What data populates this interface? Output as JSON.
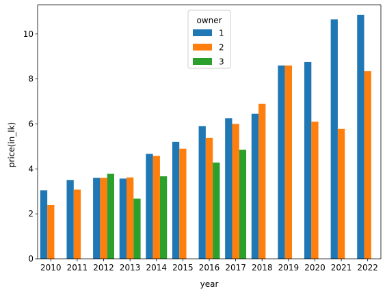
{
  "chart_data": {
    "type": "bar",
    "xlabel": "year",
    "ylabel": "price(in_lk)",
    "ylim": [
      0,
      11.3
    ],
    "yticks": [
      0,
      2,
      4,
      6,
      8,
      10
    ],
    "categories": [
      "2010",
      "2011",
      "2012",
      "2013",
      "2014",
      "2015",
      "2016",
      "2017",
      "2018",
      "2019",
      "2020",
      "2021",
      "2022"
    ],
    "legend": {
      "title": "owner",
      "placement": "top-center"
    },
    "series": [
      {
        "name": "1",
        "color": "#1f77b4",
        "values": [
          3.05,
          3.5,
          3.6,
          3.57,
          4.67,
          5.2,
          5.9,
          6.25,
          6.45,
          8.6,
          8.75,
          10.65,
          10.85
        ]
      },
      {
        "name": "2",
        "color": "#ff7f0e",
        "values": [
          2.4,
          3.08,
          3.6,
          3.62,
          4.58,
          4.9,
          5.38,
          6.0,
          6.9,
          8.6,
          6.1,
          5.78,
          8.35
        ]
      },
      {
        "name": "3",
        "color": "#2ca02c",
        "values": [
          null,
          null,
          3.78,
          2.68,
          3.67,
          null,
          4.28,
          4.85,
          null,
          null,
          null,
          null,
          null
        ]
      }
    ]
  }
}
